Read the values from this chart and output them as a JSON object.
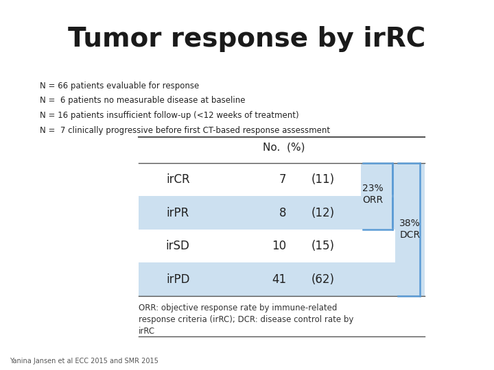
{
  "title": "Tumor response by irRC",
  "title_fontsize": 28,
  "title_fontweight": "bold",
  "background_color": "#ffffff",
  "notes": [
    "N = 66 patients evaluable for response",
    "N =  6 patients no measurable disease at baseline",
    "N = 16 patients insufficient follow-up (<12 weeks of treatment)",
    "N =  7 clinically progressive before first CT-based response assessment"
  ],
  "notes_fontsize": 8.5,
  "table_header": [
    "",
    "No.  (%)",
    ""
  ],
  "rows": [
    {
      "label": "irCR",
      "no": "7",
      "pct": "(11)",
      "highlight": false
    },
    {
      "label": "irPR",
      "no": "8",
      "pct": "(12)",
      "highlight": true
    },
    {
      "label": "irSD",
      "no": "10",
      "pct": "(15)",
      "highlight": false
    },
    {
      "label": "irPD",
      "no": "41",
      "pct": "(62)",
      "highlight": true
    }
  ],
  "highlight_color": "#cce0f0",
  "bracket_color": "#5b9bd5",
  "orr_text": "23%\nORR",
  "dcr_text": "38%\nDCR",
  "footnote": "ORR: objective response rate by immune-related\nresponse criteria (irRC); DCR: disease control rate by\nirRC",
  "footnote_fontsize": 8.5,
  "credit": "Yanina Jansen et al ECC 2015 and SMR 2015",
  "credit_fontsize": 7
}
